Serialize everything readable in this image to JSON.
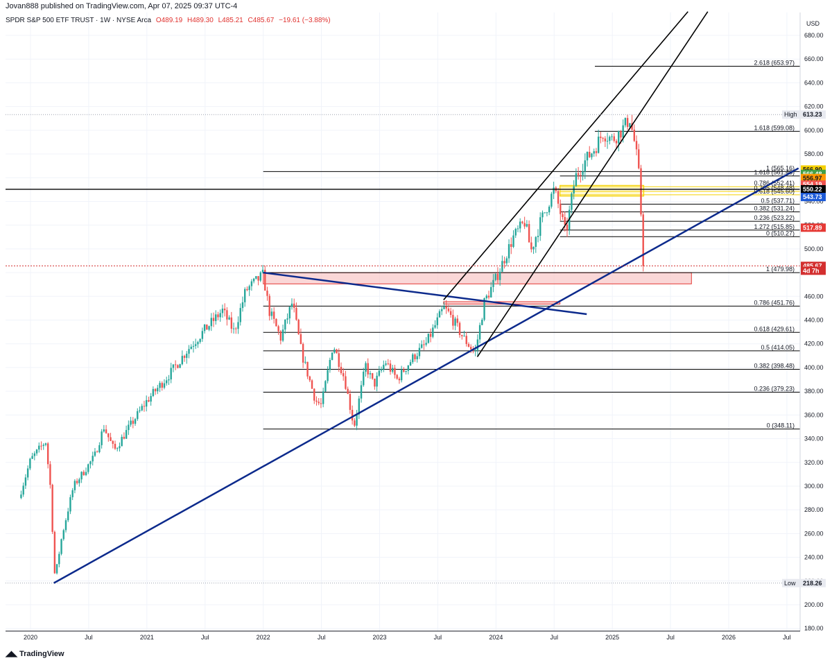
{
  "header": {
    "published": "Jovan888 published on TradingView.com, Apr 07, 2025 09:37 UTC-4"
  },
  "legend": {
    "symbol": "SPDR S&P 500 ETF TRUST · 1W · NYSE Arca",
    "open": "O489.19",
    "high": "H489.30",
    "low": "L485.21",
    "close": "C485.67",
    "change": "−19.61 (−3.88%)"
  },
  "footer": {
    "brand": "TradingView"
  },
  "colors": {
    "up": "#26a69a",
    "down": "#ef5350",
    "trendline": "#0c2a8c",
    "channel": "#000000",
    "zone": "#f8c9c9",
    "zone_border": "#e53935",
    "yellow": "#f5d000"
  },
  "chart_data": {
    "type": "candlestick",
    "currency": "USD",
    "y_ticks": [
      180,
      200,
      220,
      240,
      260,
      280,
      300,
      320,
      340,
      360,
      380,
      400,
      420,
      440,
      460,
      480,
      500,
      520,
      540,
      560,
      580,
      600,
      620,
      640,
      660,
      680
    ],
    "x_ticks": [
      {
        "label": "2020",
        "t": 2020.0
      },
      {
        "label": "Jul",
        "t": 2020.5
      },
      {
        "label": "2021",
        "t": 2021.0
      },
      {
        "label": "Jul",
        "t": 2021.5
      },
      {
        "label": "2022",
        "t": 2022.0
      },
      {
        "label": "Jul",
        "t": 2022.5
      },
      {
        "label": "2023",
        "t": 2023.0
      },
      {
        "label": "Jul",
        "t": 2023.5
      },
      {
        "label": "2024",
        "t": 2024.0
      },
      {
        "label": "Jul",
        "t": 2024.5
      },
      {
        "label": "2025",
        "t": 2025.0
      },
      {
        "label": "Jul",
        "t": 2025.5
      },
      {
        "label": "2026",
        "t": 2026.0
      },
      {
        "label": "Jul",
        "t": 2026.5
      }
    ],
    "price_path": [
      [
        2019.9,
        290
      ],
      [
        2020.0,
        322
      ],
      [
        2020.13,
        338
      ],
      [
        2020.17,
        300
      ],
      [
        2020.21,
        222
      ],
      [
        2020.27,
        258
      ],
      [
        2020.37,
        300
      ],
      [
        2020.55,
        325
      ],
      [
        2020.63,
        350
      ],
      [
        2020.72,
        330
      ],
      [
        2020.85,
        350
      ],
      [
        2021.0,
        372
      ],
      [
        2021.2,
        395
      ],
      [
        2021.35,
        415
      ],
      [
        2021.5,
        432
      ],
      [
        2021.65,
        448
      ],
      [
        2021.75,
        430
      ],
      [
        2021.85,
        465
      ],
      [
        2022.0,
        478
      ],
      [
        2022.05,
        448
      ],
      [
        2022.15,
        425
      ],
      [
        2022.25,
        455
      ],
      [
        2022.33,
        412
      ],
      [
        2022.45,
        372
      ],
      [
        2022.5,
        368
      ],
      [
        2022.6,
        420
      ],
      [
        2022.7,
        390
      ],
      [
        2022.78,
        350
      ],
      [
        2022.88,
        402
      ],
      [
        2022.95,
        385
      ],
      [
        2023.05,
        405
      ],
      [
        2023.15,
        390
      ],
      [
        2023.3,
        410
      ],
      [
        2023.4,
        420
      ],
      [
        2023.55,
        450
      ],
      [
        2023.6,
        445
      ],
      [
        2023.72,
        425
      ],
      [
        2023.82,
        412
      ],
      [
        2023.9,
        455
      ],
      [
        2024.0,
        475
      ],
      [
        2024.15,
        510
      ],
      [
        2024.25,
        523
      ],
      [
        2024.3,
        498
      ],
      [
        2024.38,
        522
      ],
      [
        2024.5,
        550
      ],
      [
        2024.55,
        532
      ],
      [
        2024.6,
        512
      ],
      [
        2024.68,
        560
      ],
      [
        2024.75,
        572
      ],
      [
        2024.85,
        585
      ],
      [
        2024.92,
        598
      ],
      [
        2025.0,
        592
      ],
      [
        2025.08,
        600
      ],
      [
        2025.15,
        610
      ],
      [
        2025.2,
        585
      ],
      [
        2025.23,
        560
      ],
      [
        2025.26,
        505
      ],
      [
        2025.27,
        486
      ]
    ],
    "last_close": 485.67,
    "high": 613.23,
    "low": 218.26,
    "fib_levels": [
      {
        "label": "2.618 (653.97)",
        "price": 653.97,
        "x0": 2024.85
      },
      {
        "label": "1.618 (599.08)",
        "price": 599.08,
        "x0": 2024.85
      },
      {
        "label": "1 (565.16)",
        "price": 565.16,
        "x0": 2022.0
      },
      {
        "label": "1.618 (561.48)",
        "price": 561.48,
        "x0": 2024.55
      },
      {
        "label": "0.786 (552.41)",
        "price": 552.41,
        "x0": 2024.55
      },
      {
        "label": "0.705 (548.48)",
        "price": 548.48,
        "x0": 2024.55
      },
      {
        "label": "0.618 (545.60)",
        "price": 545.6,
        "x0": 2024.55
      },
      {
        "label": "0.5 (537.71)",
        "price": 537.71,
        "x0": 2024.55
      },
      {
        "label": "0.382 (531.24)",
        "price": 531.24,
        "x0": 2024.55
      },
      {
        "label": "0.236 (523.22)",
        "price": 523.22,
        "x0": 2024.55
      },
      {
        "label": "1.272 (515.85)",
        "price": 515.85,
        "x0": 2024.55
      },
      {
        "label": "0 (510.27)",
        "price": 510.27,
        "x0": 2024.55
      },
      {
        "label": "1 (479.98)",
        "price": 479.98,
        "x0": 2022.0
      },
      {
        "label": "0.786 (451.76)",
        "price": 451.76,
        "x0": 2022.0
      },
      {
        "label": "0.618 (429.61)",
        "price": 429.61,
        "x0": 2022.0
      },
      {
        "label": "0.5 (414.05)",
        "price": 414.05,
        "x0": 2022.0
      },
      {
        "label": "0.382 (398.48)",
        "price": 398.48,
        "x0": 2022.0
      },
      {
        "label": "0.236 (379.23)",
        "price": 379.23,
        "x0": 2022.0
      },
      {
        "label": "0 (348.11)",
        "price": 348.11,
        "x0": 2022.0
      }
    ],
    "price_tags": [
      {
        "text": "613.23",
        "price": 613.23,
        "bg": "#e8eaf0",
        "fg": "#131722",
        "prefix": "High"
      },
      {
        "text": "566.90",
        "price": 566.9,
        "bg": "#f5d000",
        "fg": "#131722"
      },
      {
        "text": "566.48",
        "price": 563.2,
        "bg": "#43a047",
        "fg": "#ffffff"
      },
      {
        "text": "556.97",
        "price": 559.7,
        "bg": "#ff9800",
        "fg": "#131722"
      },
      {
        "text": "554.19",
        "price": 554.19,
        "bg": "#ef5350",
        "fg": "#ffffff"
      },
      {
        "text": "550.22",
        "price": 550.22,
        "bg": "#000000",
        "fg": "#ffffff"
      },
      {
        "text": "543.73",
        "price": 543.73,
        "bg": "#1e5bd8",
        "fg": "#ffffff"
      },
      {
        "text": "517.89",
        "price": 517.89,
        "bg": "#e53935",
        "fg": "#ffffff"
      },
      {
        "text": "485.67",
        "price": 485.67,
        "bg": "#d32f2f",
        "fg": "#ffffff"
      },
      {
        "text": "4d 7h",
        "price": 481.6,
        "bg": "#d32f2f",
        "fg": "#ffffff"
      },
      {
        "text": "218.26",
        "price": 218.26,
        "bg": "#e8eaf0",
        "fg": "#131722",
        "prefix": "Low"
      }
    ],
    "trendlines": [
      {
        "points": [
          [
            2020.2,
            218.26
          ],
          [
            2026.6,
            568
          ]
        ],
        "color": "trendline"
      },
      {
        "points": [
          [
            2022.0,
            479.98
          ],
          [
            2024.78,
            445
          ]
        ],
        "color": "trendline"
      },
      {
        "points": [
          [
            2023.55,
            457
          ],
          [
            2025.65,
            700
          ]
        ],
        "color": "channel"
      },
      {
        "points": [
          [
            2023.84,
            409
          ],
          [
            2025.82,
            700
          ]
        ],
        "color": "channel"
      }
    ],
    "horizontal_lines": [
      550.22
    ],
    "zones": [
      {
        "t0": 2022.0,
        "t1": 2025.68,
        "p0": 470.5,
        "p1": 479.98
      },
      {
        "t0": 2023.55,
        "t1": 2024.55,
        "p0": 453.5,
        "p1": 455.5
      }
    ],
    "yellow_band": {
      "t0": 2024.55,
      "t1": 2025.27,
      "p0": 544.5,
      "p1": 553.5
    }
  }
}
